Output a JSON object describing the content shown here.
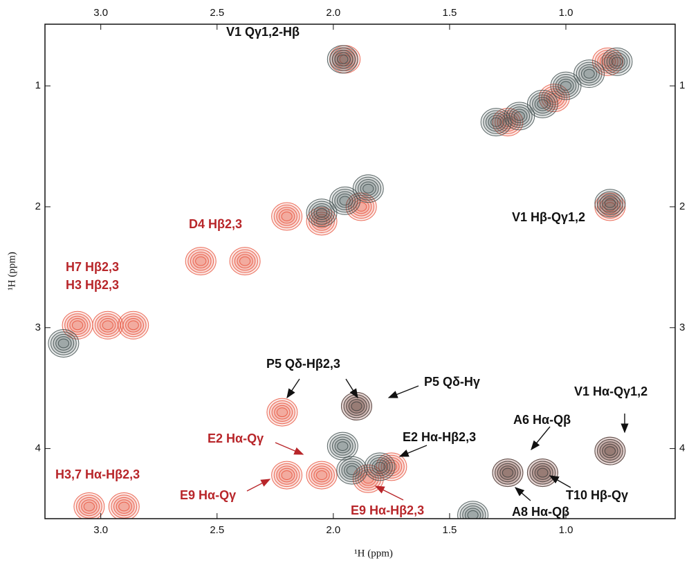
{
  "chart_data": {
    "type": "contour",
    "x_label": "¹H (ppm)",
    "y_label": "¹H (ppm)",
    "xlim": [
      3.24,
      0.53
    ],
    "ylim": [
      0.49,
      4.58
    ],
    "xticks": [
      {
        "value": 3,
        "label": "3.0"
      },
      2.5,
      {
        "value": 2,
        "label": "2.0"
      },
      1.5,
      {
        "value": 1,
        "label": "1.0"
      }
    ],
    "yticks": [
      1,
      2,
      3,
      4
    ],
    "series": [
      {
        "color": "#e8523c",
        "x": [
          2.57,
          2.38,
          3.1,
          2.97,
          2.86,
          2.2,
          2.05,
          1.88,
          2.22,
          1.9,
          2.2,
          2.05,
          1.85,
          1.75,
          3.05,
          2.9,
          1.25,
          1.1,
          1.25,
          1.05,
          0.82,
          1.95,
          0.81,
          0.81
        ],
        "y": [
          2.45,
          2.45,
          2.98,
          2.98,
          2.98,
          2.08,
          2.12,
          2.0,
          3.7,
          3.65,
          4.22,
          4.22,
          4.25,
          4.15,
          4.48,
          4.48,
          4.2,
          4.2,
          1.3,
          1.1,
          0.8,
          0.78,
          2.0,
          4.02
        ]
      },
      {
        "color": "#3d4b4b",
        "x": [
          1.96,
          1.3,
          1.2,
          1.1,
          1.0,
          0.9,
          0.78,
          2.05,
          1.95,
          1.85,
          0.81,
          3.16,
          1.9,
          1.96,
          1.8,
          1.92,
          1.25,
          1.1,
          0.81,
          1.4
        ],
        "y": [
          0.78,
          1.3,
          1.25,
          1.15,
          1.0,
          0.9,
          0.8,
          2.05,
          1.95,
          1.85,
          1.97,
          3.13,
          3.65,
          3.98,
          4.15,
          4.18,
          4.2,
          4.2,
          4.02,
          4.55
        ]
      }
    ],
    "annotations": [
      "V1 Qγ1,2-Hβ",
      "V1 Hβ-Qγ1,2",
      "D4 Hβ2,3",
      "H7 Hβ2,3",
      "H3 Hβ2,3",
      "P5 Qδ-Hβ2,3",
      "P5 Qδ-Hγ",
      "V1 Hα-Qγ1,2",
      "A6 Hα-Qβ",
      "E2 Hα-Qγ",
      "E2 Hα-Hβ2,3",
      "H3,7 Hα-Hβ2,3",
      "E9 Hα-Qγ",
      "T10 Hβ-Qγ",
      "E9 Hα-Hβ2,3",
      "A8 Hα-Qβ"
    ]
  }
}
